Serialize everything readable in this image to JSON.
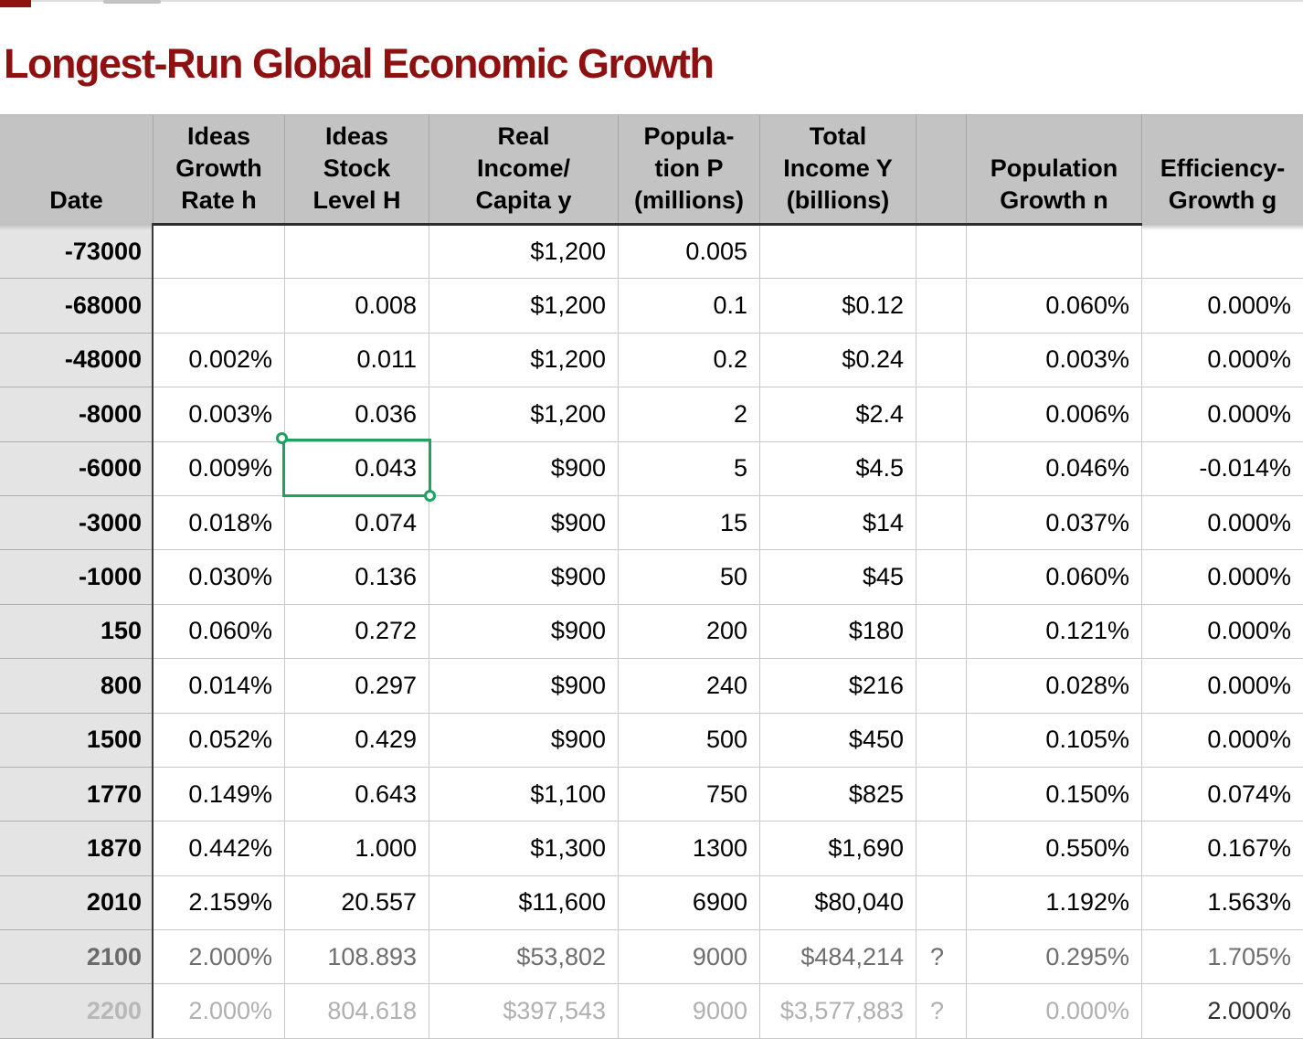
{
  "title": "Longest-Run Global Economic Growth",
  "colors": {
    "title_red": "#8e1111",
    "selection_green": "#22a061",
    "header_gray": "#c3c3c3",
    "date_column_gray": "#e4e4e4"
  },
  "selected_cell": {
    "row_date": "-6000",
    "column": "Ideas Stock Level H",
    "value": "0.043"
  },
  "table": {
    "header": {
      "date": "Date",
      "cols": [
        "Ideas\nGrowth\nRate h",
        "Ideas\nStock\nLevel H",
        "Real\nIncome/\nCapita y",
        "Popula-\ntion P\n(millions)",
        "Total\nIncome Y\n(billions)",
        "",
        "Population\nGrowth n",
        "Efficiency-\nGrowth g"
      ]
    },
    "rows": [
      {
        "date": "-73000",
        "tone": "normal",
        "cells": [
          "",
          "",
          "$1,200",
          "0.005",
          "",
          "",
          "",
          ""
        ]
      },
      {
        "date": "-68000",
        "tone": "normal",
        "cells": [
          "",
          "0.008",
          "$1,200",
          "0.1",
          "$0.12",
          "",
          "0.060%",
          "0.000%"
        ]
      },
      {
        "date": "-48000",
        "tone": "normal",
        "cells": [
          "0.002%",
          "0.011",
          "$1,200",
          "0.2",
          "$0.24",
          "",
          "0.003%",
          "0.000%"
        ]
      },
      {
        "date": "-8000",
        "tone": "normal",
        "cells": [
          "0.003%",
          "0.036",
          "$1,200",
          "2",
          "$2.4",
          "",
          "0.006%",
          "0.000%"
        ]
      },
      {
        "date": "-6000",
        "tone": "normal",
        "cells": [
          "0.009%",
          "0.043",
          "$900",
          "5",
          "$4.5",
          "",
          "0.046%",
          "-0.014%"
        ]
      },
      {
        "date": "-3000",
        "tone": "normal",
        "cells": [
          "0.018%",
          "0.074",
          "$900",
          "15",
          "$14",
          "",
          "0.037%",
          "0.000%"
        ]
      },
      {
        "date": "-1000",
        "tone": "normal",
        "cells": [
          "0.030%",
          "0.136",
          "$900",
          "50",
          "$45",
          "",
          "0.060%",
          "0.000%"
        ]
      },
      {
        "date": "150",
        "tone": "normal",
        "cells": [
          "0.060%",
          "0.272",
          "$900",
          "200",
          "$180",
          "",
          "0.121%",
          "0.000%"
        ]
      },
      {
        "date": "800",
        "tone": "normal",
        "cells": [
          "0.014%",
          "0.297",
          "$900",
          "240",
          "$216",
          "",
          "0.028%",
          "0.000%"
        ]
      },
      {
        "date": "1500",
        "tone": "normal",
        "cells": [
          "0.052%",
          "0.429",
          "$900",
          "500",
          "$450",
          "",
          "0.105%",
          "0.000%"
        ]
      },
      {
        "date": "1770",
        "tone": "normal",
        "cells": [
          "0.149%",
          "0.643",
          "$1,100",
          "750",
          "$825",
          "",
          "0.150%",
          "0.074%"
        ]
      },
      {
        "date": "1870",
        "tone": "normal",
        "cells": [
          "0.442%",
          "1.000",
          "$1,300",
          "1300",
          "$1,690",
          "",
          "0.550%",
          "0.167%"
        ]
      },
      {
        "date": "2010",
        "tone": "normal",
        "cells": [
          "2.159%",
          "20.557",
          "$11,600",
          "6900",
          "$80,040",
          "",
          "1.192%",
          "1.563%"
        ]
      },
      {
        "date": "2100",
        "tone": "muted",
        "cells": [
          "2.000%",
          "108.893",
          "$53,802",
          "9000",
          "$484,214",
          "?",
          "0.295%",
          "1.705%"
        ]
      },
      {
        "date": "2200",
        "tone": "faint",
        "last_cell_tone": "dark",
        "cells": [
          "2.000%",
          "804.618",
          "$397,543",
          "9000",
          "$3,577,883",
          "?",
          "0.000%",
          "2.000%"
        ]
      }
    ]
  }
}
